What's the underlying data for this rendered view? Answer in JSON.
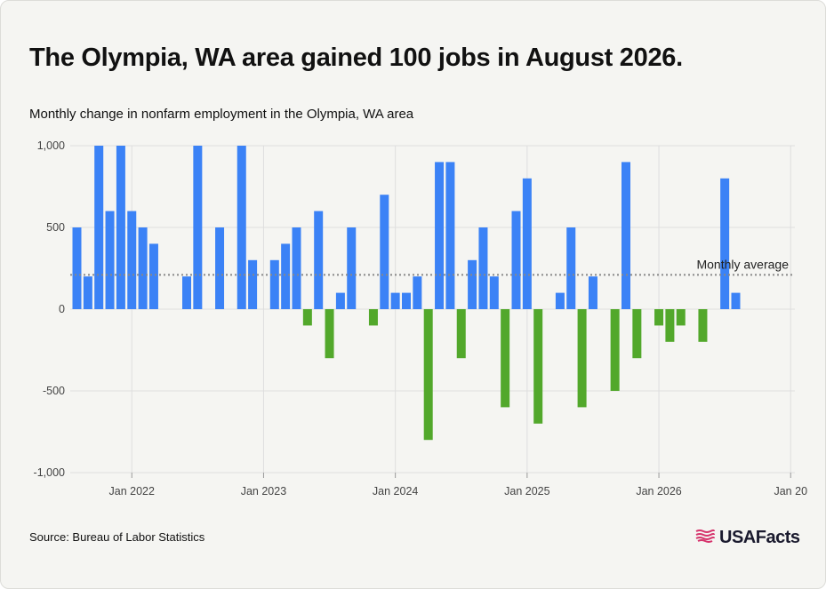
{
  "header": {
    "title": "The Olympia, WA area gained 100 jobs in August 2026.",
    "subtitle": "Monthly change in nonfarm employment in the Olympia, WA area"
  },
  "footer": {
    "source": "Source: Bureau of Labor Statistics",
    "logo_text": "USAFacts",
    "logo_icon": "usafacts-flag-icon"
  },
  "colors": {
    "positive": "#3b82f6",
    "negative": "#52a82b",
    "grid": "#dedede",
    "average_line": "#888888"
  },
  "chart_data": {
    "type": "bar",
    "title": "Monthly change in nonfarm employment in the Olympia, WA area",
    "xlabel": "",
    "ylabel": "",
    "ylim": [
      -1000,
      1000
    ],
    "yticks": [
      1000,
      500,
      0,
      -500,
      -1000
    ],
    "ytick_labels": [
      "1,000",
      "500",
      "0",
      "-500",
      "-1,000"
    ],
    "xtick_labels": [
      "Jan 2022",
      "Jan 2023",
      "Jan 2024",
      "Jan 2025",
      "Jan 2026",
      "Jan 20"
    ],
    "grid": true,
    "categories": [
      "Aug 2021",
      "Sep 2021",
      "Oct 2021",
      "Nov 2021",
      "Dec 2021",
      "Jan 2022",
      "Feb 2022",
      "Mar 2022",
      "Apr 2022",
      "May 2022",
      "Jun 2022",
      "Jul 2022",
      "Aug 2022",
      "Sep 2022",
      "Oct 2022",
      "Nov 2022",
      "Dec 2022",
      "Jan 2023",
      "Feb 2023",
      "Mar 2023",
      "Apr 2023",
      "May 2023",
      "Jun 2023",
      "Jul 2023",
      "Aug 2023",
      "Sep 2023",
      "Oct 2023",
      "Nov 2023",
      "Dec 2023",
      "Jan 2024",
      "Feb 2024",
      "Mar 2024",
      "Apr 2024",
      "May 2024",
      "Jun 2024",
      "Jul 2024",
      "Aug 2024",
      "Sep 2024",
      "Oct 2024",
      "Nov 2024",
      "Dec 2024",
      "Jan 2025",
      "Feb 2025",
      "Mar 2025",
      "Apr 2025",
      "May 2025",
      "Jun 2025",
      "Jul 2025",
      "Aug 2025",
      "Sep 2025",
      "Oct 2025",
      "Nov 2025",
      "Dec 2025",
      "Jan 2026",
      "Feb 2026",
      "Mar 2026",
      "Apr 2026",
      "May 2026",
      "Jun 2026",
      "Jul 2026",
      "Aug 2026"
    ],
    "values": [
      500,
      200,
      1000,
      600,
      1000,
      600,
      500,
      400,
      0,
      0,
      200,
      1000,
      0,
      500,
      0,
      1000,
      300,
      0,
      300,
      400,
      500,
      -100,
      600,
      -300,
      100,
      500,
      0,
      -100,
      700,
      100,
      100,
      200,
      -800,
      900,
      900,
      -300,
      300,
      500,
      200,
      -600,
      600,
      800,
      -700,
      0,
      100,
      500,
      -600,
      200,
      0,
      -500,
      900,
      -300,
      0,
      -100,
      -200,
      -100,
      0,
      -200,
      0,
      800,
      100
    ],
    "average": {
      "label": "Monthly average",
      "value": 210
    }
  }
}
